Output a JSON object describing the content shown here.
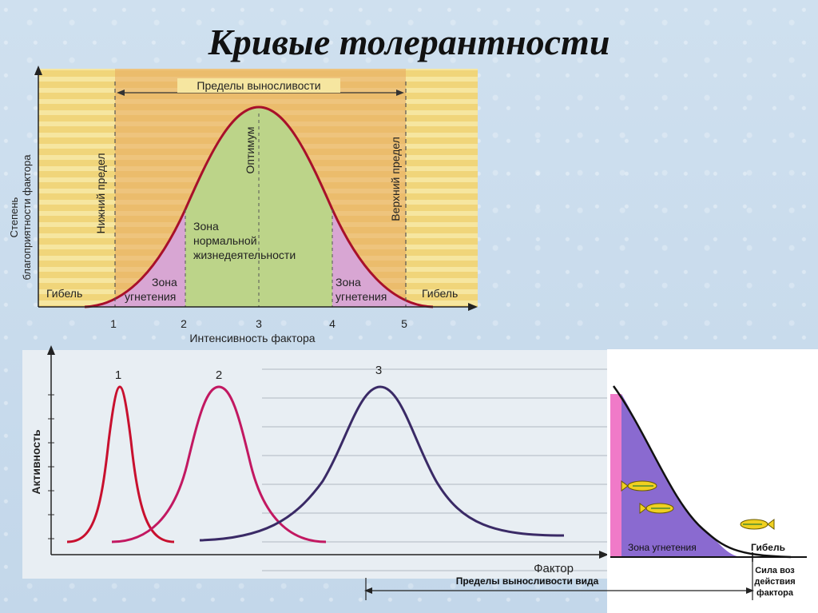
{
  "title": "Кривые толерантности",
  "diagram1": {
    "y_axis_label_line1": "Степень",
    "y_axis_label_line2": "благоприятности фактора",
    "x_axis_label": "Интенсивность фактора",
    "limits_label": "Пределы выносливости",
    "lower_limit": "Нижний предел",
    "upper_limit": "Верхний предел",
    "optimum": "Оптимум",
    "normal_zone_line1": "Зона",
    "normal_zone_line2": "нормальной",
    "normal_zone_line3": "жизнедеятельности",
    "oppression_left_line1": "Зона",
    "oppression_left_line2": "угнетения",
    "oppression_right_line1": "Зона",
    "oppression_right_line2": "угнетения",
    "death_left": "Гибель",
    "death_right": "Гибель",
    "ticks": [
      "1",
      "2",
      "3",
      "4",
      "5"
    ],
    "colors": {
      "bg": "#f2dd86",
      "pink": "#d8a6d3",
      "green": "#bcd489",
      "curve": "#a8102a"
    }
  },
  "diagram2": {
    "y_axis_label": "Активность",
    "x_axis_label": "Фактор",
    "curve_labels": [
      "1",
      "2",
      "3"
    ],
    "colors": {
      "curve1": "#c8102e",
      "curve2": "#c21861",
      "curve3": "#3a2a66"
    }
  },
  "diagram3": {
    "zone_label": "Зона угнетения",
    "death_label": "Гибель",
    "limits_label": "Пределы выносливости вида",
    "force_line1": "Сила воз",
    "force_line2": "действия",
    "force_line3": "фактора",
    "fish_icons": [
      "fish-icon",
      "fish-icon",
      "fish-icon"
    ],
    "colors": {
      "zone": "#8a6ad0",
      "pink": "#f07ac8",
      "fish": "#f0d020"
    }
  }
}
